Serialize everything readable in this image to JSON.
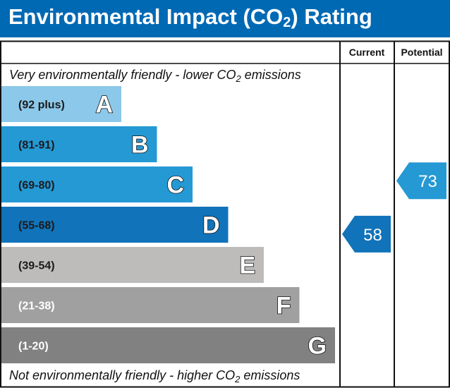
{
  "header": {
    "title_prefix": "Environmental Impact (CO",
    "title_sub": "2",
    "title_suffix": ") Rating"
  },
  "columns": {
    "current": "Current",
    "potential": "Potential"
  },
  "notes": {
    "top_prefix": "Very environmentally friendly - lower CO",
    "top_sub": "2",
    "top_suffix": " emissions",
    "bottom_prefix": "Not environmentally friendly - higher CO",
    "bottom_sub": "2",
    "bottom_suffix": " emissions"
  },
  "chart_data": {
    "type": "bar",
    "categories": [
      "A",
      "B",
      "C",
      "D",
      "E",
      "F",
      "G"
    ],
    "bands": [
      {
        "letter": "A",
        "range": "(92 plus)",
        "min": 92,
        "max": 100,
        "color": "#8cc8e9",
        "text_color": "#1a1a1a"
      },
      {
        "letter": "B",
        "range": "(81-91)",
        "min": 81,
        "max": 91,
        "color": "#2599d4",
        "text_color": "#1a1a1a"
      },
      {
        "letter": "C",
        "range": "(69-80)",
        "min": 69,
        "max": 80,
        "color": "#2599d4",
        "text_color": "#1a1a1a"
      },
      {
        "letter": "D",
        "range": "(55-68)",
        "min": 55,
        "max": 68,
        "color": "#1173b9",
        "text_color": "#1a1a1a"
      },
      {
        "letter": "E",
        "range": "(39-54)",
        "min": 39,
        "max": 54,
        "color": "#bdbcbb",
        "text_color": "#1a1a1a"
      },
      {
        "letter": "F",
        "range": "(21-38)",
        "min": 21,
        "max": 38,
        "color": "#a0a0a0",
        "text_color": "#ffffff"
      },
      {
        "letter": "G",
        "range": "(1-20)",
        "min": 1,
        "max": 20,
        "color": "#818181",
        "text_color": "#ffffff"
      }
    ],
    "current": {
      "value": "58",
      "band": "D",
      "color": "#1173b9"
    },
    "potential": {
      "value": "73",
      "band": "C",
      "color": "#2599d4"
    }
  }
}
